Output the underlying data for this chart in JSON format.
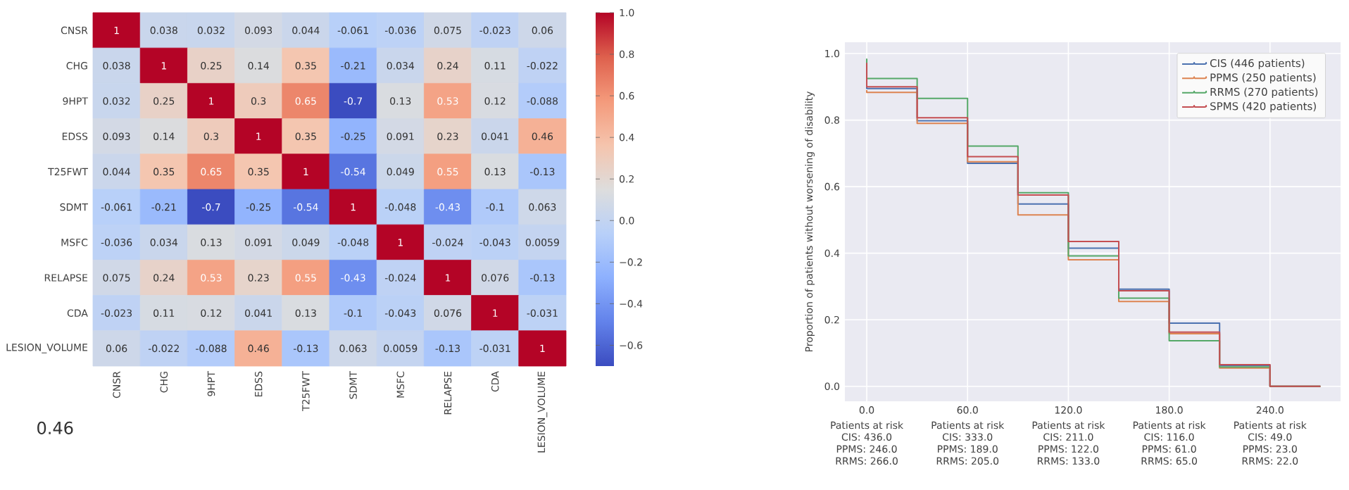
{
  "chart_data": [
    {
      "type": "heatmap",
      "categories": [
        "CNSR",
        "CHG",
        "9HPT",
        "EDSS",
        "T25FWT",
        "SDMT",
        "MSFC",
        "RELAPSE",
        "CDA",
        "LESION_VOLUME"
      ],
      "y_categories": [
        "CNSR",
        "CHG",
        "9HPT",
        "EDSS",
        "T25FWT",
        "SDMT",
        "MSFC",
        "RELAPSE",
        "CDA",
        "LESION_VOLUME"
      ],
      "cells": [
        [
          1,
          0.038,
          0.032,
          0.093,
          0.044,
          -0.061,
          -0.036,
          0.075,
          -0.023,
          0.06
        ],
        [
          0.038,
          1,
          0.25,
          0.14,
          0.35,
          -0.21,
          0.034,
          0.24,
          0.11,
          -0.022
        ],
        [
          0.032,
          0.25,
          1,
          0.3,
          0.65,
          -0.7,
          0.13,
          0.53,
          0.12,
          -0.088
        ],
        [
          0.093,
          0.14,
          0.3,
          1,
          0.35,
          -0.25,
          0.091,
          0.23,
          0.041,
          0.46
        ],
        [
          0.044,
          0.35,
          0.65,
          0.35,
          1,
          -0.54,
          0.049,
          0.55,
          0.13,
          -0.13
        ],
        [
          -0.061,
          -0.21,
          -0.7,
          -0.25,
          -0.54,
          1,
          -0.048,
          -0.43,
          -0.1,
          0.063
        ],
        [
          -0.036,
          0.034,
          0.13,
          0.091,
          0.049,
          -0.048,
          1,
          -0.024,
          -0.043,
          0.0059
        ],
        [
          0.075,
          0.24,
          0.53,
          0.23,
          0.55,
          -0.43,
          -0.024,
          1,
          0.076,
          -0.13
        ],
        [
          -0.023,
          0.11,
          0.12,
          0.041,
          0.13,
          -0.1,
          -0.043,
          0.076,
          1,
          -0.031
        ],
        [
          0.06,
          -0.022,
          -0.088,
          0.46,
          -0.13,
          0.063,
          0.0059,
          -0.13,
          -0.031,
          1
        ]
      ],
      "clim": [
        -0.7,
        1.0
      ],
      "cticks": [
        {
          "value": -0.6,
          "label": "−0.6"
        },
        {
          "value": -0.4,
          "label": "−0.4"
        },
        {
          "value": -0.2,
          "label": "−0.2"
        },
        {
          "value": 0,
          "label": "0.0"
        },
        0.2,
        0.4,
        0.6,
        0.8,
        {
          "value": 1.0,
          "label": "1.0"
        }
      ],
      "data_labels": true,
      "annotations": [
        "0.46"
      ]
    },
    {
      "type": "step",
      "ylabel": "Proportion of patients without worsening of disability",
      "series": [
        {
          "name": "CIS (446 patients)",
          "color": "#4c72b0",
          "x": [
            0,
            0,
            30,
            60,
            90,
            120,
            150,
            180,
            210,
            240,
            270
          ],
          "values": [
            0.9,
            0.895,
            0.798,
            0.67,
            0.548,
            0.415,
            0.292,
            0.19,
            0.063,
            0,
            0
          ]
        },
        {
          "name": "PPMS (250 patients)",
          "color": "#dd8452",
          "x": [
            0,
            0,
            30,
            60,
            90,
            120,
            150,
            180,
            210,
            240,
            270
          ],
          "values": [
            0.89,
            0.883,
            0.79,
            0.675,
            0.515,
            0.38,
            0.255,
            0.158,
            0.055,
            0,
            0
          ]
        },
        {
          "name": "RRMS (270 patients)",
          "color": "#55a868",
          "x": [
            0,
            0,
            30,
            60,
            90,
            120,
            150,
            180,
            210,
            240,
            270
          ],
          "values": [
            0.985,
            0.925,
            0.865,
            0.722,
            0.582,
            0.392,
            0.265,
            0.137,
            0.058,
            0,
            0
          ]
        },
        {
          "name": "SPMS (420 patients)",
          "color": "#c44e52",
          "x": [
            0,
            0,
            30,
            60,
            90,
            120,
            150,
            180,
            210,
            240,
            270
          ],
          "values": [
            0.972,
            0.9,
            0.807,
            0.69,
            0.575,
            0.435,
            0.287,
            0.163,
            0.065,
            0,
            0
          ]
        }
      ],
      "xlim": [
        -13,
        282
      ],
      "ylim": [
        -0.045,
        1.034
      ],
      "xticks": [
        {
          "value": 0,
          "label": "0.0"
        },
        {
          "value": 60,
          "label": "60.0"
        },
        {
          "value": 120,
          "label": "120.0"
        },
        {
          "value": 180,
          "label": "180.0"
        },
        {
          "value": 240,
          "label": "240.0"
        }
      ],
      "yticks": [
        {
          "value": 0,
          "label": "0.0"
        },
        0.2,
        0.4,
        0.6,
        0.8,
        {
          "value": 1.0,
          "label": "1.0"
        }
      ],
      "grid": true,
      "legend": "top right",
      "annotations": [
        "Patients at risk",
        "CIS: 436.0",
        "PPMS: 246.0",
        "RRMS: 266.0",
        "Patients at risk",
        "CIS: 333.0",
        "PPMS: 189.0",
        "RRMS: 205.0",
        "Patients at risk",
        "CIS: 211.0",
        "PPMS: 122.0",
        "RRMS: 133.0",
        "Patients at risk",
        "CIS: 116.0",
        "PPMS: 61.0",
        "RRMS: 65.0",
        "Patients at risk",
        "CIS: 49.0",
        "PPMS: 23.0",
        "RRMS: 22.0"
      ]
    }
  ]
}
